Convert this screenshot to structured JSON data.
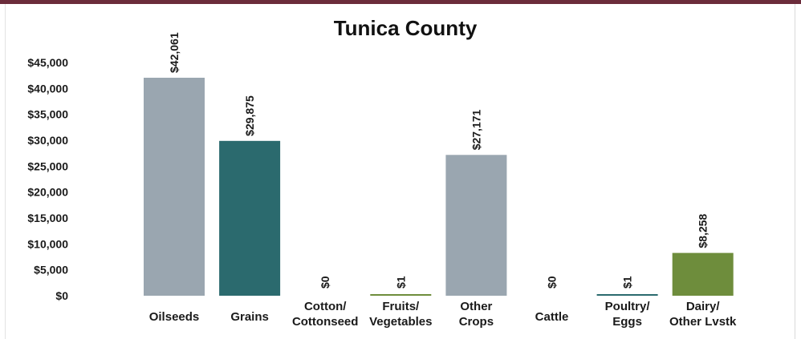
{
  "chart_data": {
    "type": "bar",
    "title": "Tunica County",
    "xlabel": "",
    "ylabel": "",
    "ylim": [
      0,
      45000
    ],
    "yticks": [
      0,
      5000,
      10000,
      15000,
      20000,
      25000,
      30000,
      35000,
      40000,
      45000
    ],
    "ytick_labels": [
      "$0",
      "$5,000",
      "$10,000",
      "$15,000",
      "$20,000",
      "$25,000",
      "$30,000",
      "$35,000",
      "$40,000",
      "$45,000"
    ],
    "grid": false,
    "legend": "none",
    "categories": [
      [
        "Oilseeds"
      ],
      [
        "Grains"
      ],
      [
        "Cotton/",
        "Cottonseed"
      ],
      [
        "Fruits/",
        "Vegetables"
      ],
      [
        "Other",
        "Crops"
      ],
      [
        "Cattle"
      ],
      [
        "Poultry/",
        "Eggs"
      ],
      [
        "Dairy/",
        "Other Lvstk"
      ]
    ],
    "values": [
      42061,
      29875,
      0,
      1,
      27171,
      0,
      1,
      8258
    ],
    "data_labels": [
      "$42,061",
      "$29,875",
      "$0",
      "$1",
      "$27,171",
      "$0",
      "$1",
      "$8,258"
    ],
    "colors": [
      "#9aa6b0",
      "#2b6a6e",
      "#9aa6b0",
      "#6e8d3c",
      "#9aa6b0",
      "#2b6a6e",
      "#2b6a6e",
      "#6e8d3c"
    ]
  }
}
